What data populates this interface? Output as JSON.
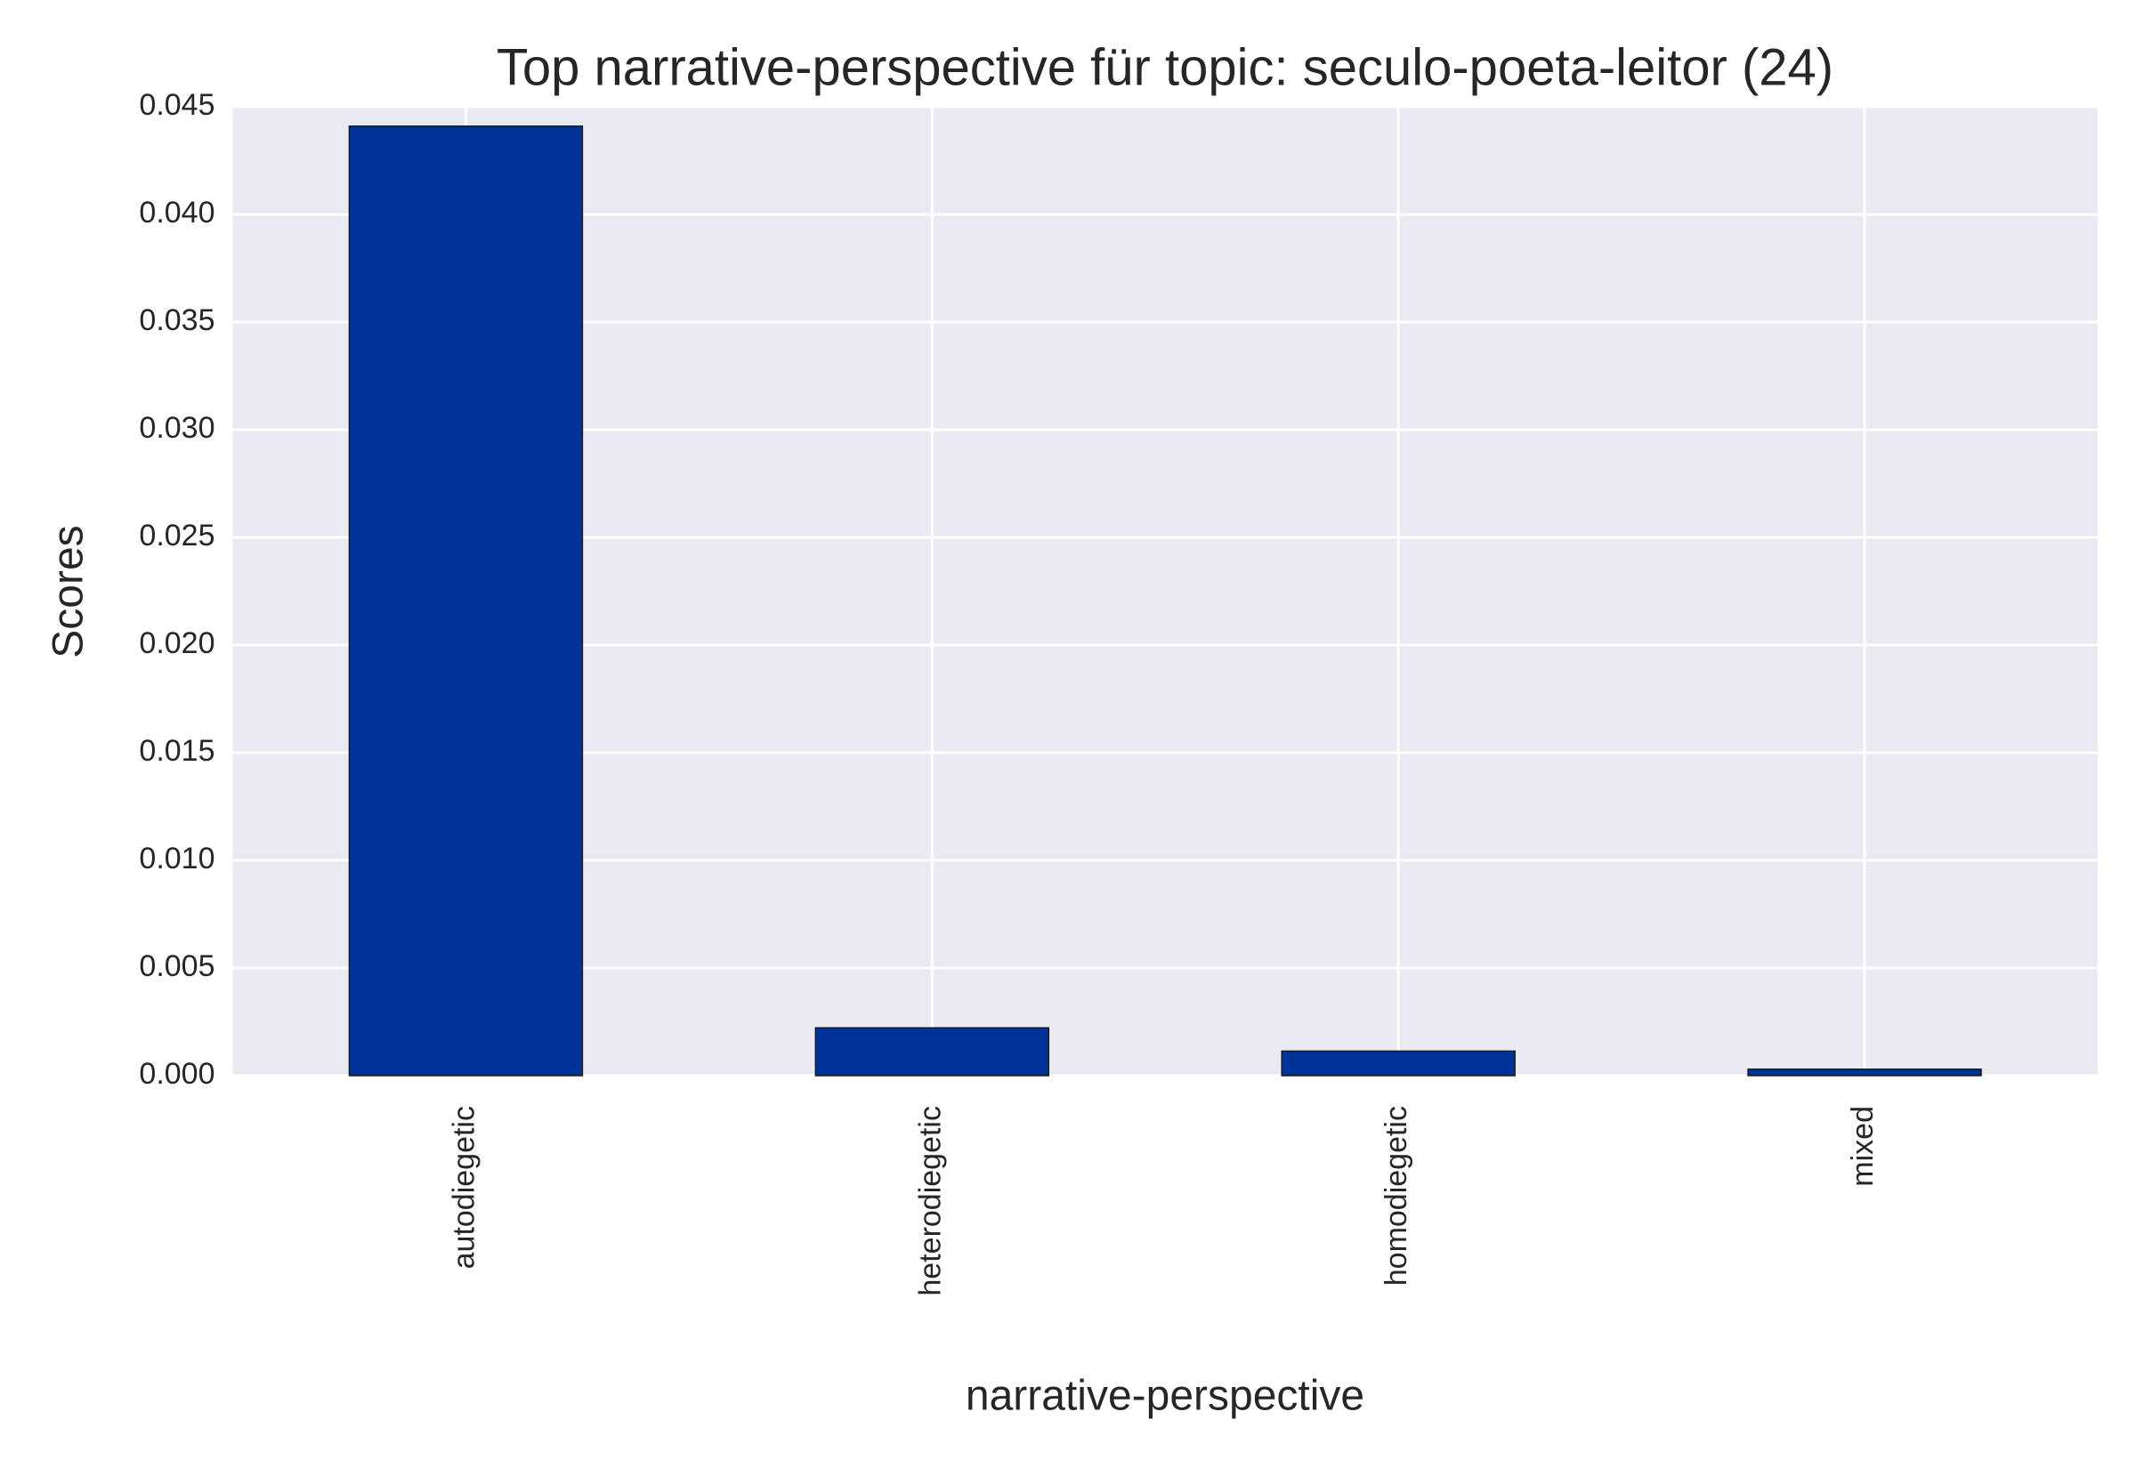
{
  "chart_data": {
    "type": "bar",
    "title": "Top narrative-perspective für topic: seculo-poeta-leitor (24)",
    "x_label": "narrative-perspective",
    "y_label": "Scores",
    "categories": [
      "autodiegetic",
      "heterodiegetic",
      "homodiegetic",
      "mixed"
    ],
    "values": [
      0.0441,
      0.00222,
      0.00114,
      0.0003
    ],
    "color": "#003399",
    "ylim": [
      0,
      0.045
    ],
    "yticks": [
      {
        "value": 0,
        "label": "0.000"
      },
      0.005,
      {
        "value": 0.01,
        "label": "0.010"
      },
      0.015,
      {
        "value": 0.02,
        "label": "0.020"
      },
      0.025,
      {
        "value": 0.03,
        "label": "0.030"
      },
      0.035,
      {
        "value": 0.04,
        "label": "0.040"
      },
      0.045
    ],
    "grid": true
  }
}
